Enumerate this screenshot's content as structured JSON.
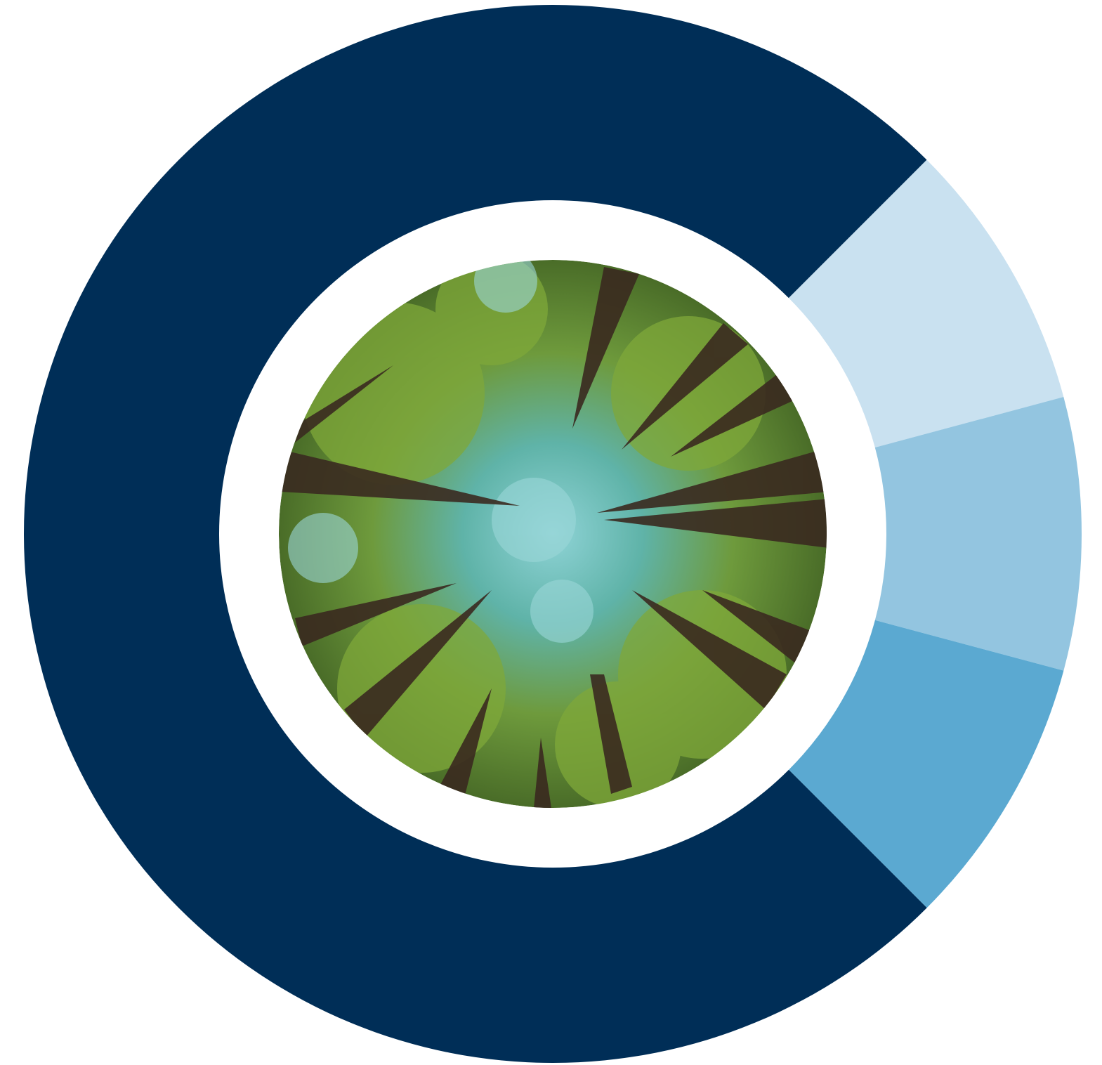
{
  "chart_data": {
    "type": "donut",
    "values": [
      8.33,
      8.33,
      8.33,
      75
    ],
    "colors": [
      "#c9e1f0",
      "#93c5e0",
      "#5ba9d1",
      "#002e57"
    ]
  }
}
